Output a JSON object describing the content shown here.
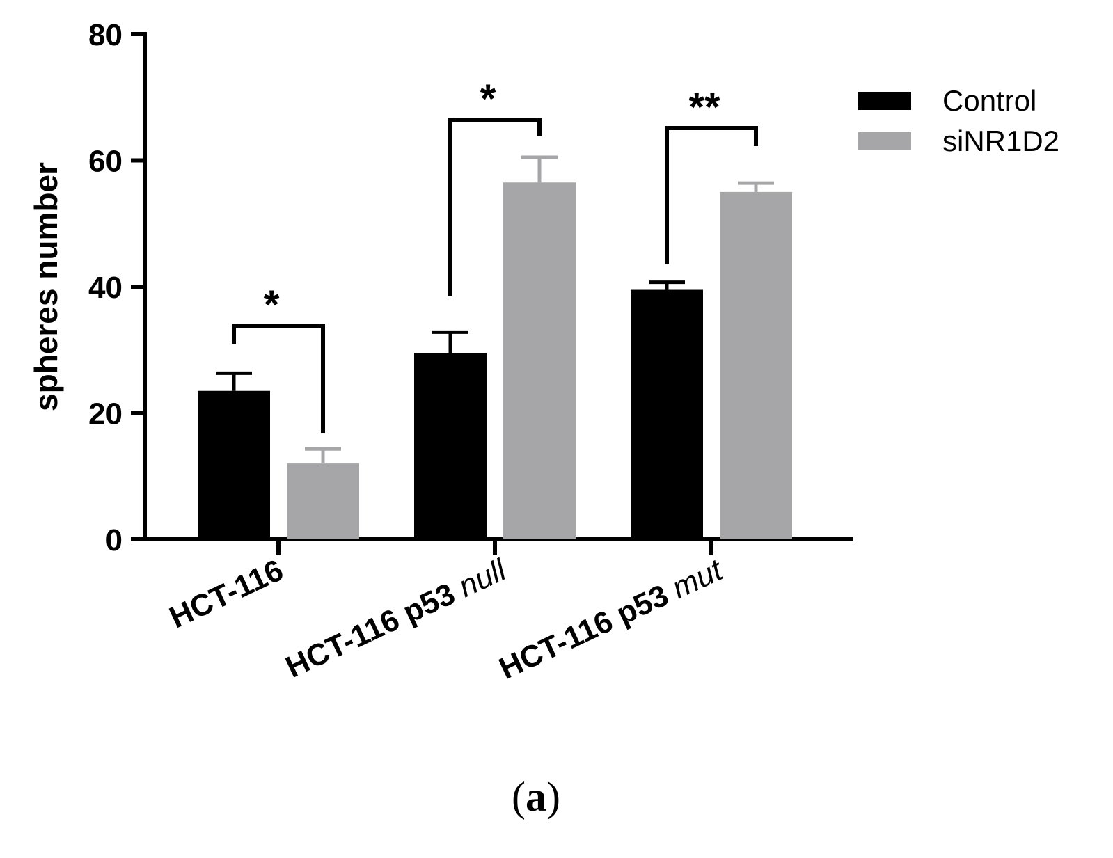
{
  "chart_data": {
    "type": "bar",
    "ylabel": "spheres number",
    "xlabel": "",
    "ylim": [
      0,
      80
    ],
    "yticks": [
      0,
      20,
      40,
      60,
      80
    ],
    "grid": false,
    "legend_position": "top-right",
    "categories": [
      {
        "main": "HCT-116",
        "italic": ""
      },
      {
        "main": "HCT-116 p53 ",
        "italic": "null"
      },
      {
        "main": "HCT-116 p53 ",
        "italic": "mut"
      }
    ],
    "series": [
      {
        "name": "Control",
        "color": "#000000",
        "values": [
          23.5,
          29.5,
          39.5
        ],
        "errors": [
          2.8,
          3.3,
          1.2
        ]
      },
      {
        "name": "siNR1D2",
        "color": "#a6a6a8",
        "values": [
          12,
          56.5,
          55
        ],
        "errors": [
          2.3,
          4.0,
          1.4
        ]
      }
    ],
    "significance": [
      {
        "category": 0,
        "label": "*"
      },
      {
        "category": 1,
        "label": "*"
      },
      {
        "category": 2,
        "label": "**"
      }
    ],
    "panel_label": {
      "open": "(",
      "letter": "a",
      "close": ")"
    }
  }
}
